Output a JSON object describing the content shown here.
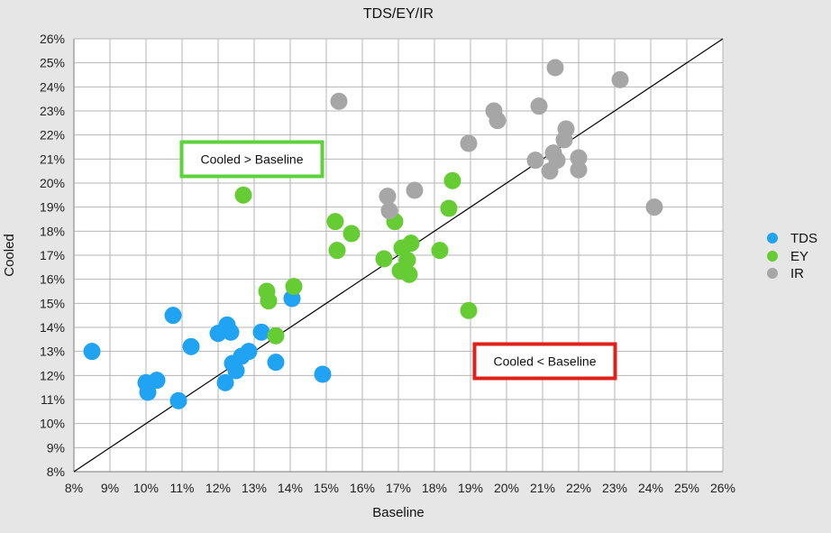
{
  "chart_data": {
    "type": "scatter",
    "title": "TDS/EY/IR",
    "xlabel": "Baseline",
    "ylabel": "Cooled",
    "xlim": [
      8,
      26
    ],
    "ylim": [
      8,
      26
    ],
    "x_ticks": [
      "8%",
      "9%",
      "10%",
      "11%",
      "12%",
      "13%",
      "14%",
      "15%",
      "16%",
      "17%",
      "18%",
      "19%",
      "20%",
      "21%",
      "22%",
      "23%",
      "24%",
      "25%",
      "26%"
    ],
    "y_ticks": [
      "8%",
      "9%",
      "10%",
      "11%",
      "12%",
      "13%",
      "14%",
      "15%",
      "16%",
      "17%",
      "18%",
      "19%",
      "20%",
      "21%",
      "22%",
      "23%",
      "24%",
      "25%",
      "26%"
    ],
    "grid": true,
    "legend_position": "right",
    "reference_line": "y = x",
    "series": [
      {
        "name": "TDS",
        "color": "#1fa3f2",
        "points": [
          [
            8.5,
            13.0
          ],
          [
            10.0,
            11.7
          ],
          [
            10.05,
            11.3
          ],
          [
            10.3,
            11.8
          ],
          [
            10.75,
            14.5
          ],
          [
            10.9,
            10.95
          ],
          [
            11.25,
            13.2
          ],
          [
            12.0,
            13.75
          ],
          [
            12.2,
            11.7
          ],
          [
            12.25,
            14.1
          ],
          [
            12.35,
            13.8
          ],
          [
            12.4,
            12.5
          ],
          [
            12.5,
            12.2
          ],
          [
            12.65,
            12.8
          ],
          [
            12.85,
            13.0
          ],
          [
            13.2,
            13.8
          ],
          [
            13.6,
            12.55
          ],
          [
            14.05,
            15.2
          ],
          [
            14.9,
            12.05
          ]
        ]
      },
      {
        "name": "EY",
        "color": "#66cc33",
        "points": [
          [
            12.7,
            19.5
          ],
          [
            13.35,
            15.5
          ],
          [
            13.4,
            15.1
          ],
          [
            13.6,
            13.65
          ],
          [
            14.1,
            15.7
          ],
          [
            15.25,
            18.4
          ],
          [
            15.3,
            17.2
          ],
          [
            15.7,
            17.9
          ],
          [
            16.6,
            16.85
          ],
          [
            16.9,
            18.4
          ],
          [
            17.05,
            16.35
          ],
          [
            17.1,
            17.3
          ],
          [
            17.25,
            16.8
          ],
          [
            17.3,
            16.2
          ],
          [
            17.35,
            17.5
          ],
          [
            18.15,
            17.2
          ],
          [
            18.4,
            18.95
          ],
          [
            18.5,
            20.1
          ],
          [
            18.95,
            14.7
          ]
        ]
      },
      {
        "name": "IR",
        "color": "#a6a6a6",
        "points": [
          [
            15.35,
            23.4
          ],
          [
            16.7,
            19.45
          ],
          [
            16.75,
            18.85
          ],
          [
            17.45,
            19.7
          ],
          [
            18.95,
            21.65
          ],
          [
            19.65,
            23.0
          ],
          [
            19.75,
            22.6
          ],
          [
            20.8,
            20.95
          ],
          [
            20.9,
            23.2
          ],
          [
            21.2,
            20.5
          ],
          [
            21.3,
            21.25
          ],
          [
            21.35,
            24.8
          ],
          [
            21.4,
            20.95
          ],
          [
            21.6,
            21.8
          ],
          [
            21.65,
            22.25
          ],
          [
            22.0,
            21.05
          ],
          [
            22.0,
            20.55
          ],
          [
            23.15,
            24.3
          ],
          [
            24.1,
            19.0
          ]
        ]
      }
    ],
    "annotations": [
      {
        "text": "Cooled > Baseline",
        "border_color": "#5dd23a"
      },
      {
        "text": "Cooled < Baseline",
        "border_color": "#e0201b"
      }
    ]
  }
}
